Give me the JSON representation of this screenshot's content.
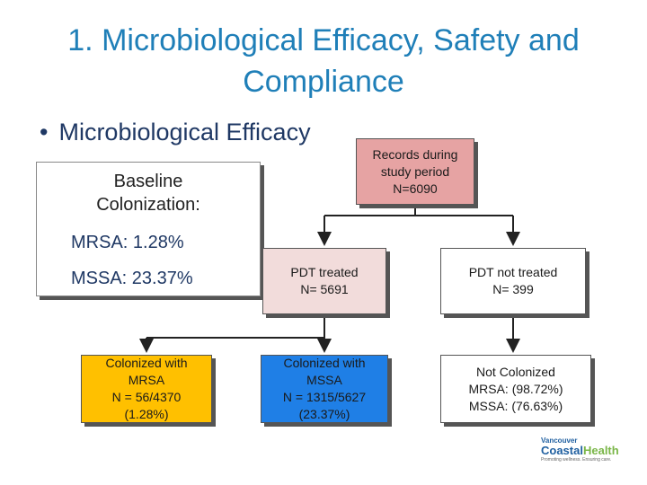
{
  "title": "1. Microbiological Efficacy, Safety and Compliance",
  "bullet": "Microbiological Efficacy",
  "baseline": {
    "label_line1": "Baseline",
    "label_line2": "Colonization:",
    "mrsa": "MRSA: 1.28%",
    "mssa": "MSSA: 23.37%"
  },
  "records": {
    "line1": "Records during",
    "line2": "study period",
    "line3": "N=6090"
  },
  "pdt_treated": {
    "line1": "PDT treated",
    "line2": "N=  5691"
  },
  "pdt_not_treated": {
    "line1": "PDT not treated",
    "line2": "N=  399"
  },
  "colonized_mrsa": {
    "line1": "Colonized with",
    "line2": "MRSA",
    "line3": "N =  56/4370",
    "line4": "(1.28%)"
  },
  "colonized_mssa": {
    "line1": "Colonized with",
    "line2": "MSSA",
    "line3": "N = 1315/5627",
    "line4": "(23.37%)"
  },
  "not_colonized": {
    "line1": "Not Colonized",
    "line2": "MRSA: (98.72%)",
    "line3": "MSSA: (76.63%)"
  },
  "logo": {
    "line1": "Vancouver",
    "line2a": "Coastal",
    "line2b": "Health",
    "line3": "Promoting wellness. Ensuring care."
  },
  "colors": {
    "title": "#1f7fb8",
    "records": "#e6a3a3",
    "pdt": "#f2dcdb",
    "mrsa": "#ffc000",
    "mssa": "#1f7fe6"
  }
}
